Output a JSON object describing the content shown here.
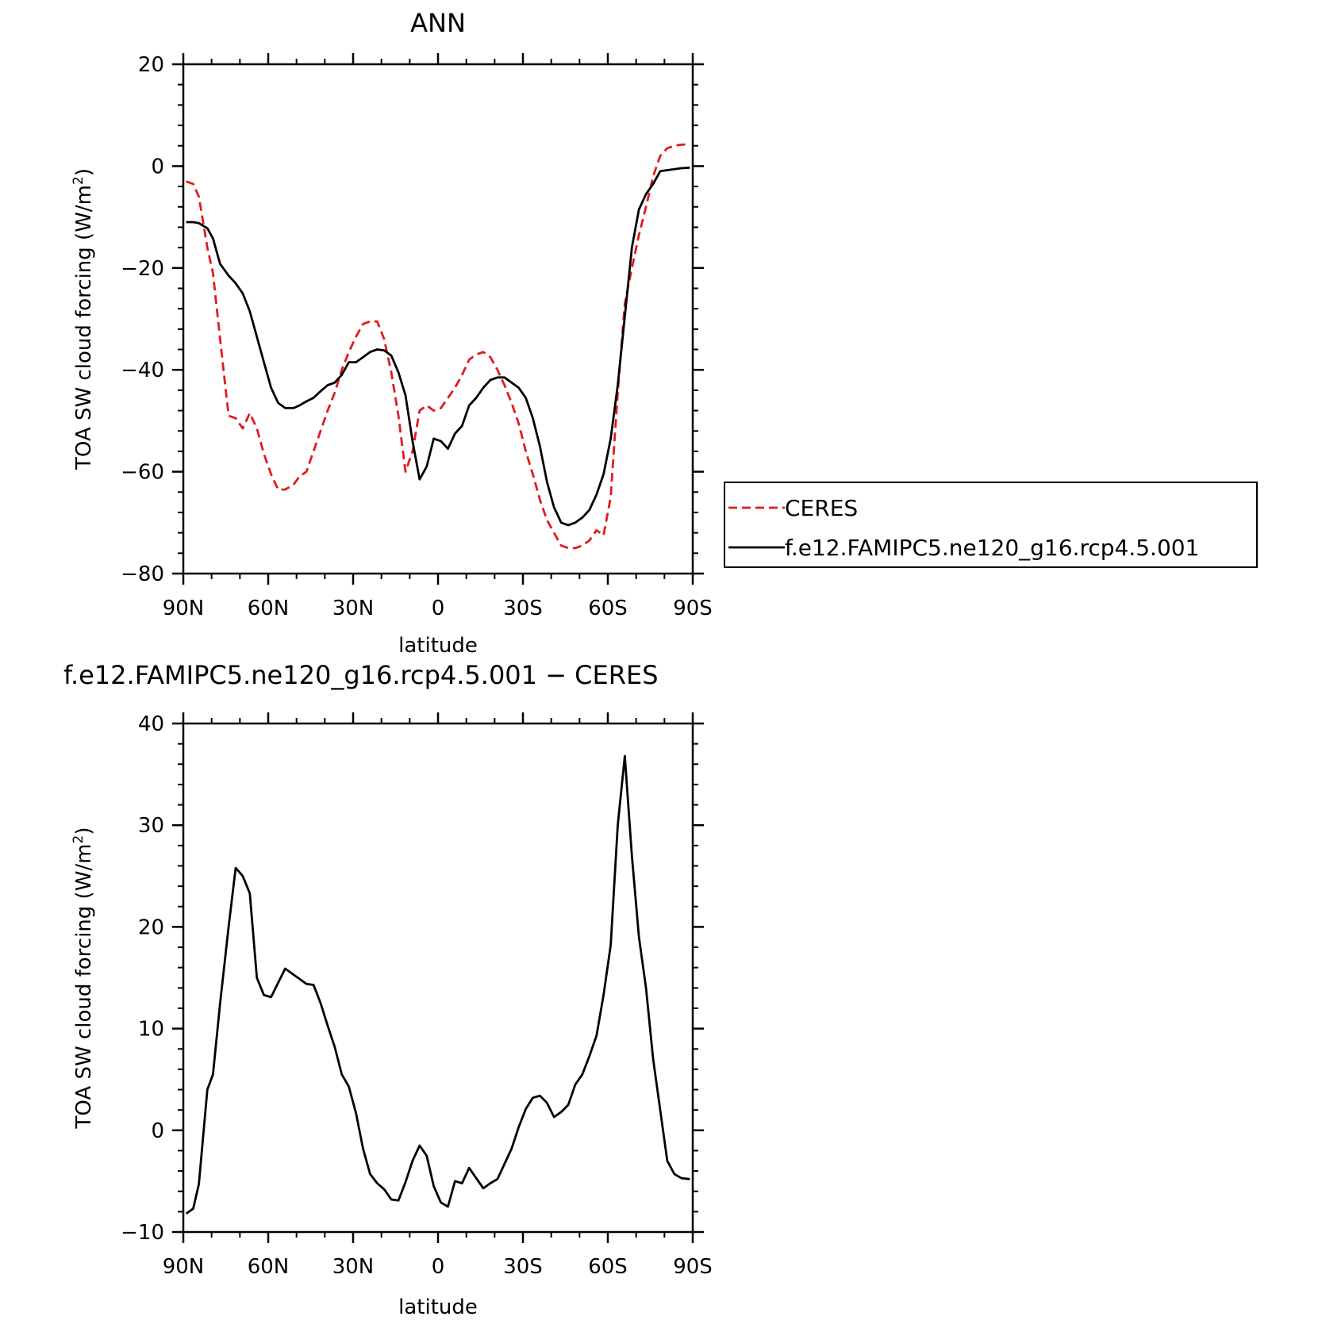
{
  "chart_data": [
    {
      "type": "line",
      "title": "ANN",
      "xlabel": "latitude",
      "ylabel_main": "TOA SW cloud forcing (W/m",
      "ylabel_sup": "2",
      "ylabel_close": ")",
      "x_ticks": [
        "90N",
        "60N",
        "30N",
        "0",
        "30S",
        "60S",
        "90S"
      ],
      "x_tick_values": [
        90,
        60,
        30,
        0,
        -30,
        -60,
        -90
      ],
      "xlim": [
        90,
        -90
      ],
      "y_ticks": [
        "20",
        "0",
        "−20",
        "−40",
        "−60",
        "−80"
      ],
      "y_tick_values": [
        20,
        0,
        -20,
        -40,
        -60,
        -80
      ],
      "ylim": [
        -80,
        20
      ],
      "grid": false,
      "legend_position": "right",
      "series": [
        {
          "name": "CERES",
          "color": "#e31a1c",
          "style": "dashed",
          "x": [
            89,
            86.5,
            84.5,
            81.5,
            79.5,
            77,
            74,
            71.5,
            69,
            66.5,
            64,
            61.5,
            59,
            56.5,
            54,
            51,
            49,
            46.5,
            44,
            41.5,
            39,
            36.5,
            34,
            31.5,
            29,
            26.5,
            24,
            21.5,
            19,
            16.5,
            14,
            11.5,
            9,
            6.5,
            4,
            1.5,
            -1,
            -3.5,
            -6,
            -8.5,
            -11,
            -13.5,
            -16,
            -18.5,
            -21,
            -23.5,
            -26,
            -28.5,
            -31,
            -33.5,
            -36,
            -38.5,
            -41,
            -43.5,
            -46,
            -48.5,
            -51,
            -53.5,
            -56,
            -58.5,
            -61,
            -63.5,
            -66,
            -68.5,
            -71,
            -73.5,
            -76,
            -78.5,
            -81,
            -83.5,
            -86,
            -89
          ],
          "y": [
            -3,
            -3.5,
            -6,
            -16,
            -21,
            -34,
            -49,
            -49.5,
            -51.5,
            -48.5,
            -51.5,
            -56.5,
            -60.5,
            -63.5,
            -63.5,
            -62.5,
            -61,
            -60,
            -56,
            -52,
            -48,
            -44.5,
            -40,
            -36.5,
            -33.5,
            -31,
            -30.5,
            -30.5,
            -34,
            -40.5,
            -49,
            -60,
            -56,
            -48,
            -47,
            -48,
            -47.5,
            -45.5,
            -43.5,
            -41,
            -38,
            -37,
            -36.5,
            -37.5,
            -40,
            -43,
            -46.5,
            -50.5,
            -56,
            -60.5,
            -65.5,
            -69.5,
            -72,
            -74.5,
            -75,
            -75,
            -74.5,
            -73.5,
            -71.5,
            -72.5,
            -65,
            -44.5,
            -27,
            -20,
            -13.5,
            -8,
            -2,
            2,
            3.5,
            4,
            4.2,
            4.3
          ]
        },
        {
          "name": "f.e12.FAMIPC5.ne120_g16.rcp4.5.001",
          "color": "#000000",
          "style": "solid",
          "x": [
            89,
            86.5,
            84.5,
            81.5,
            79.5,
            77,
            74,
            71.5,
            69,
            66.5,
            64,
            61.5,
            59,
            56.5,
            54,
            51,
            49,
            46.5,
            44,
            41.5,
            39,
            36.5,
            34,
            31.5,
            29,
            26.5,
            24,
            21.5,
            19,
            16.5,
            14,
            11.5,
            9,
            6.5,
            4,
            1.5,
            -1,
            -3.5,
            -6,
            -8.5,
            -11,
            -13.5,
            -16,
            -18.5,
            -21,
            -23.5,
            -26,
            -28.5,
            -31,
            -33.5,
            -36,
            -38.5,
            -41,
            -43.5,
            -46,
            -48.5,
            -51,
            -53.5,
            -56,
            -58.5,
            -61,
            -63.5,
            -66,
            -68.5,
            -71,
            -73.5,
            -76,
            -78.5,
            -81,
            -83.5,
            -86,
            -89
          ],
          "y": [
            -11,
            -11,
            -11.2,
            -12.2,
            -14.2,
            -19.2,
            -21.5,
            -23,
            -25,
            -28.5,
            -33.5,
            -38.5,
            -43.5,
            -46.5,
            -47.5,
            -47.5,
            -47,
            -46.2,
            -45.5,
            -44.2,
            -43,
            -42.5,
            -41,
            -38.5,
            -38.5,
            -37.5,
            -36.5,
            -36,
            -36.2,
            -37.2,
            -40.5,
            -45,
            -54,
            -61.5,
            -59,
            -53.5,
            -54,
            -55.5,
            -52.5,
            -51,
            -47,
            -45.5,
            -43.5,
            -42,
            -41.5,
            -41.5,
            -42.5,
            -43.5,
            -45.5,
            -49.5,
            -55,
            -62,
            -67,
            -70,
            -70.5,
            -70,
            -69,
            -67.5,
            -64.5,
            -60.5,
            -53.5,
            -43,
            -29.5,
            -16,
            -8.5,
            -5.5,
            -3.5,
            -1,
            -0.8,
            -0.6,
            -0.4,
            -0.3
          ]
        }
      ]
    },
    {
      "type": "line",
      "title": "f.e12.FAMIPC5.ne120_g16.rcp4.5.001 − CERES",
      "xlabel": "latitude",
      "ylabel_main": "TOA SW cloud forcing (W/m",
      "ylabel_sup": "2",
      "ylabel_close": ")",
      "x_ticks": [
        "90N",
        "60N",
        "30N",
        "0",
        "30S",
        "60S",
        "90S"
      ],
      "x_tick_values": [
        90,
        60,
        30,
        0,
        -30,
        -60,
        -90
      ],
      "xlim": [
        90,
        -90
      ],
      "y_ticks": [
        "40",
        "30",
        "20",
        "10",
        "0",
        "−10"
      ],
      "y_tick_values": [
        40,
        30,
        20,
        10,
        0,
        -10
      ],
      "ylim": [
        -10,
        40
      ],
      "grid": false,
      "series": [
        {
          "color": "#000000",
          "style": "solid",
          "x": [
            89,
            86.5,
            84.5,
            81.5,
            79.5,
            77,
            74,
            71.5,
            69,
            66.5,
            64,
            61.5,
            59,
            56.5,
            54,
            51,
            49,
            46.5,
            44,
            41.5,
            39,
            36.5,
            34,
            31.5,
            29,
            26.5,
            24,
            21.5,
            19,
            16.5,
            14,
            11.5,
            9,
            6.5,
            4,
            1.5,
            -1,
            -3.5,
            -6,
            -8.5,
            -11,
            -13.5,
            -16,
            -18.5,
            -21,
            -23.5,
            -26,
            -28.5,
            -31,
            -33.5,
            -36,
            -38.5,
            -41,
            -43.5,
            -46,
            -48.5,
            -51,
            -53.5,
            -56,
            -58.5,
            -61,
            -63.5,
            -66,
            -68.5,
            -71,
            -73.5,
            -76,
            -78.5,
            -81,
            -83.5,
            -86,
            -89
          ],
          "y": [
            -8.2,
            -7.7,
            -5.3,
            4,
            5.5,
            12.5,
            20,
            25.8,
            25,
            23.3,
            15,
            13.3,
            13.1,
            14.5,
            15.9,
            15.3,
            14.9,
            14.4,
            14.3,
            12.5,
            10.3,
            8.2,
            5.5,
            4.3,
            1.7,
            -1.8,
            -4.3,
            -5.2,
            -5.8,
            -6.8,
            -6.9,
            -5.1,
            -3,
            -1.5,
            -2.5,
            -5.5,
            -7.1,
            -7.5,
            -5,
            -5.2,
            -3.7,
            -4.7,
            -5.7,
            -5.2,
            -4.8,
            -3.3,
            -1.8,
            0.3,
            2.1,
            3.2,
            3.4,
            2.7,
            1.3,
            1.8,
            2.5,
            4.5,
            5.5,
            7.3,
            9.3,
            13.3,
            18.2,
            30,
            36.8,
            27,
            19,
            14,
            7,
            2,
            -3,
            -4.3,
            -4.7,
            -4.8
          ]
        }
      ]
    }
  ]
}
